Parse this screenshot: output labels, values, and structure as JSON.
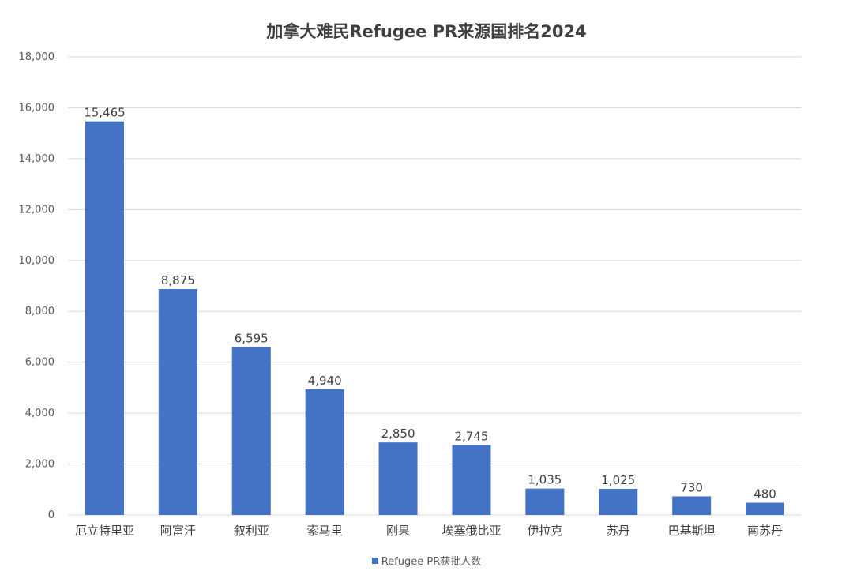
{
  "chart_data": {
    "type": "bar",
    "title": "加拿大难民Refugee PR来源国排名2024",
    "categories": [
      "厄立特里亚",
      "阿富汗",
      "叙利亚",
      "索马里",
      "刚果",
      "埃塞俄比亚",
      "伊拉克",
      "苏丹",
      "巴基斯坦",
      "南苏丹"
    ],
    "series": [
      {
        "name": "Refugee PR获批人数",
        "values": [
          15465,
          8875,
          6595,
          4940,
          2850,
          2745,
          1035,
          1025,
          730,
          480
        ],
        "color": "#4472C4"
      }
    ],
    "ylim": [
      0,
      18000
    ],
    "yticks": [
      0,
      2000,
      4000,
      6000,
      8000,
      10000,
      12000,
      14000,
      16000,
      18000
    ],
    "data_labels": [
      "15,465",
      "8,875",
      "6,595",
      "4,940",
      "2,850",
      "2,745",
      "1,035",
      "1,025",
      "730",
      "480"
    ],
    "grid": true,
    "legend_position": "bottom",
    "gridline_color": "#d9d9d9"
  }
}
